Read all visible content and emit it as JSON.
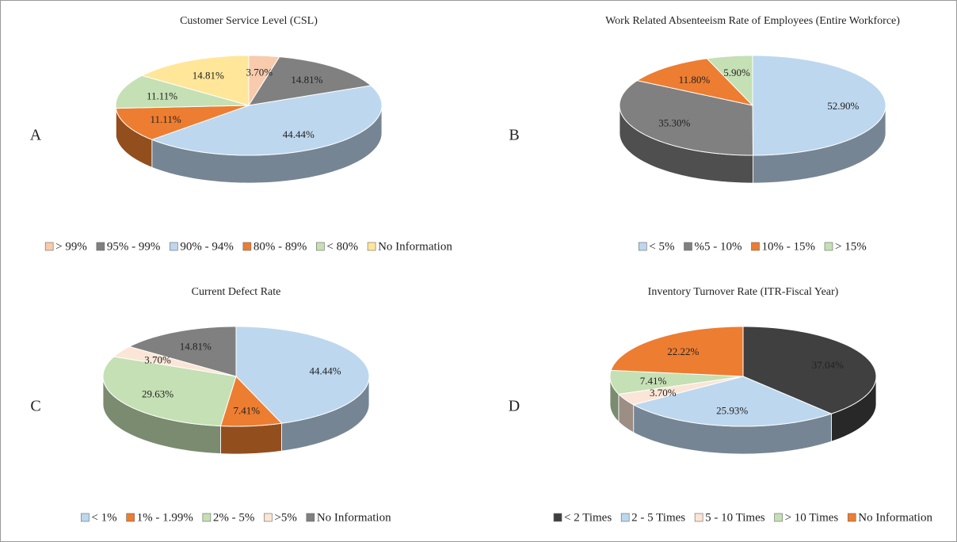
{
  "chart_data": [
    {
      "type": "pie",
      "panel": "A",
      "title": "Customer Service Level (CSL)",
      "categories": [
        "> 99%",
        "95% - 99%",
        "90% - 94%",
        "80% - 89%",
        "< 80%",
        "No Information"
      ],
      "values": [
        3.7,
        14.81,
        44.44,
        11.11,
        11.11,
        14.81
      ],
      "value_labels": [
        "3.70%",
        "14.81%",
        "44.44%",
        "11.11%",
        "11.11%",
        "14.81%"
      ],
      "colors": [
        "#f8cbad",
        "#808080",
        "#bdd7ee",
        "#ed7d31",
        "#c5e0b4",
        "#ffe699"
      ]
    },
    {
      "type": "pie",
      "panel": "B",
      "title": "Work Related Absenteeism Rate of Employees (Entire Workforce)",
      "categories": [
        "< 5%",
        "%5 - 10%",
        "10% - 15%",
        "> 15%"
      ],
      "values": [
        52.9,
        35.3,
        11.8,
        5.9
      ],
      "value_labels": [
        "52.90%",
        "35.30%",
        "11.80%",
        "5.90%"
      ],
      "colors": [
        "#bdd7ee",
        "#808080",
        "#ed7d31",
        "#c5e0b4"
      ]
    },
    {
      "type": "pie",
      "panel": "C",
      "title": "Current Defect Rate",
      "categories": [
        "< 1%",
        "1% - 1.99%",
        "2% - 5%",
        ">5%",
        "No Information"
      ],
      "values": [
        44.44,
        7.41,
        29.63,
        3.7,
        14.81
      ],
      "value_labels": [
        "44.44%",
        "7.41%",
        "29.63%",
        "3.70%",
        "14.81%"
      ],
      "colors": [
        "#bdd7ee",
        "#ed7d31",
        "#c5e0b4",
        "#fbe5d6",
        "#808080"
      ]
    },
    {
      "type": "pie",
      "panel": "D",
      "title": "Inventory Turnover Rate (ITR-Fiscal Year)",
      "categories": [
        "< 2 Times",
        "2 - 5 Times",
        "5 - 10 Times",
        "> 10 Times",
        "No Information"
      ],
      "values": [
        37.04,
        25.93,
        3.7,
        7.41,
        22.22
      ],
      "value_labels": [
        "37.04%",
        "25.93%",
        "3.70%",
        "7.41%",
        "22.22%"
      ],
      "colors": [
        "#404040",
        "#bdd7ee",
        "#fbe5d6",
        "#c5e0b4",
        "#ed7d31"
      ]
    }
  ]
}
